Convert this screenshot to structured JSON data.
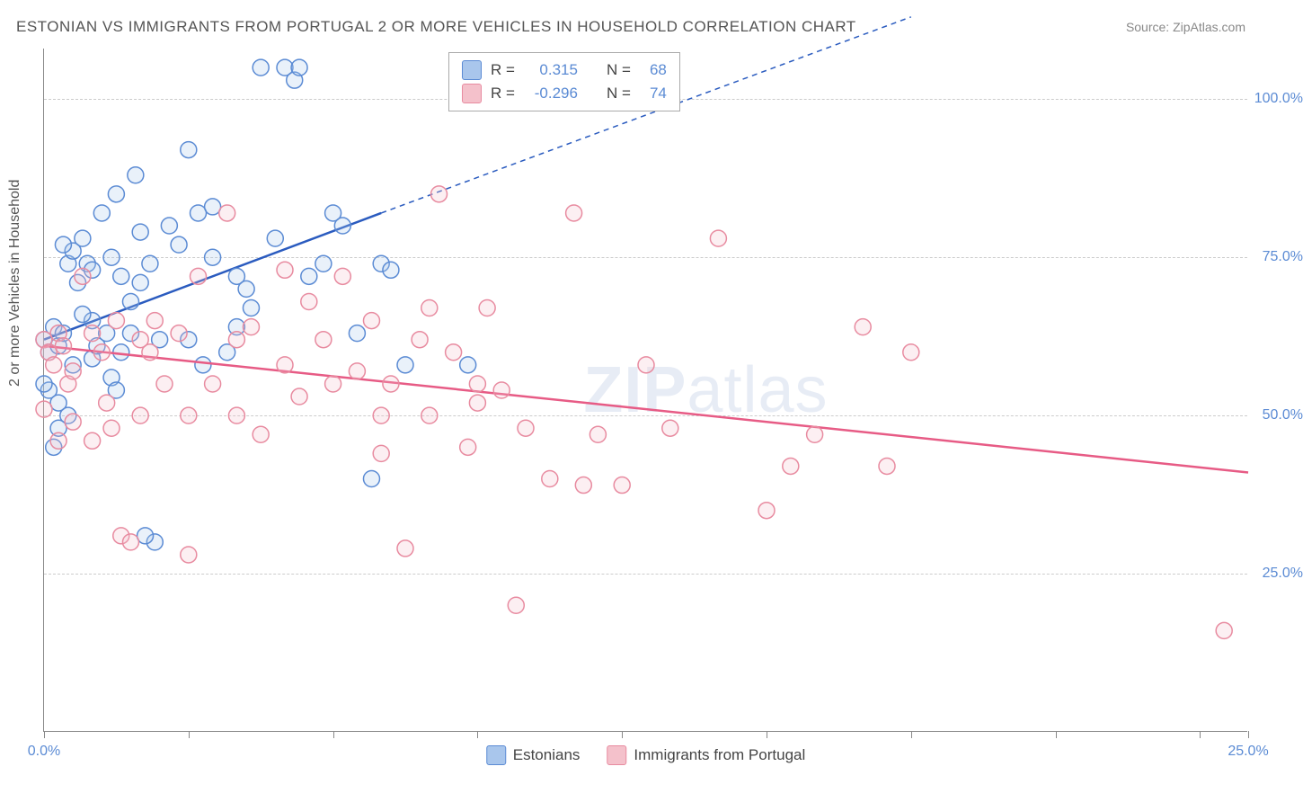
{
  "title": "ESTONIAN VS IMMIGRANTS FROM PORTUGAL 2 OR MORE VEHICLES IN HOUSEHOLD CORRELATION CHART",
  "source": "Source: ZipAtlas.com",
  "y_axis_label": "2 or more Vehicles in Household",
  "watermark": "ZIPatlas",
  "chart": {
    "type": "scatter",
    "xlim": [
      0,
      25
    ],
    "ylim": [
      0,
      108
    ],
    "x_ticks": [
      0,
      3,
      6,
      9,
      12,
      15,
      18,
      21,
      24,
      25
    ],
    "x_tick_labels": {
      "0": "0.0%",
      "25": "25.0%"
    },
    "y_gridlines": [
      25,
      50,
      75,
      100
    ],
    "y_tick_labels": {
      "25": "25.0%",
      "50": "50.0%",
      "75": "75.0%",
      "100": "100.0%"
    },
    "background_color": "#ffffff",
    "grid_color": "#cccccc",
    "axis_color": "#888888",
    "label_color": "#5b8bd4",
    "title_color": "#555555",
    "marker_radius": 9,
    "marker_stroke_width": 1.5,
    "marker_fill_opacity": 0.25,
    "series": [
      {
        "name": "Estonians",
        "color_fill": "#a9c6ec",
        "color_stroke": "#5b8bd4",
        "r_label": "R =",
        "r": "0.315",
        "n_label": "N =",
        "n": "68",
        "trend": {
          "x1": 0,
          "y1": 62,
          "x2": 7,
          "y2": 82,
          "solid_color": "#2a5bbf",
          "dash_x2": 18,
          "dash_y2": 113
        },
        "points": [
          [
            0.0,
            62
          ],
          [
            0.1,
            60
          ],
          [
            0.2,
            64
          ],
          [
            0.3,
            61
          ],
          [
            0.4,
            63
          ],
          [
            0.1,
            54
          ],
          [
            0.3,
            52
          ],
          [
            0.5,
            74
          ],
          [
            0.6,
            76
          ],
          [
            0.4,
            77
          ],
          [
            0.7,
            71
          ],
          [
            0.8,
            78
          ],
          [
            0.9,
            74
          ],
          [
            1.0,
            73
          ],
          [
            1.9,
            88
          ],
          [
            1.5,
            85
          ],
          [
            1.2,
            82
          ],
          [
            1.0,
            59
          ],
          [
            1.1,
            61
          ],
          [
            1.3,
            63
          ],
          [
            1.4,
            56
          ],
          [
            1.5,
            54
          ],
          [
            1.6,
            60
          ],
          [
            1.8,
            63
          ],
          [
            2.0,
            79
          ],
          [
            2.2,
            74
          ],
          [
            2.4,
            62
          ],
          [
            2.6,
            80
          ],
          [
            3.0,
            92
          ],
          [
            3.2,
            82
          ],
          [
            3.5,
            75
          ],
          [
            3.8,
            60
          ],
          [
            4.0,
            64
          ],
          [
            4.3,
            67
          ],
          [
            4.5,
            105
          ],
          [
            4.8,
            78
          ],
          [
            5.0,
            105
          ],
          [
            5.2,
            103
          ],
          [
            5.3,
            105
          ],
          [
            5.5,
            72
          ],
          [
            5.8,
            74
          ],
          [
            6.0,
            82
          ],
          [
            6.2,
            80
          ],
          [
            6.5,
            63
          ],
          [
            6.8,
            40
          ],
          [
            7.0,
            74
          ],
          [
            7.2,
            73
          ],
          [
            7.5,
            58
          ],
          [
            3.0,
            62
          ],
          [
            3.3,
            58
          ],
          [
            1.8,
            68
          ],
          [
            2.0,
            71
          ],
          [
            2.3,
            30
          ],
          [
            2.1,
            31
          ],
          [
            1.0,
            65
          ],
          [
            0.8,
            66
          ],
          [
            0.6,
            58
          ],
          [
            0.5,
            50
          ],
          [
            0.3,
            48
          ],
          [
            0.2,
            45
          ],
          [
            4.0,
            72
          ],
          [
            4.2,
            70
          ],
          [
            2.8,
            77
          ],
          [
            3.5,
            83
          ],
          [
            1.4,
            75
          ],
          [
            1.6,
            72
          ],
          [
            8.8,
            58
          ],
          [
            0.0,
            55
          ]
        ]
      },
      {
        "name": "Immigrants from Portugal",
        "color_fill": "#f4c1cb",
        "color_stroke": "#e88ba0",
        "r_label": "R =",
        "r": "-0.296",
        "n_label": "N =",
        "n": "74",
        "trend": {
          "x1": 0,
          "y1": 61,
          "x2": 25,
          "y2": 41,
          "solid_color": "#e75b85"
        },
        "points": [
          [
            0.0,
            62
          ],
          [
            0.1,
            60
          ],
          [
            0.2,
            58
          ],
          [
            0.3,
            63
          ],
          [
            0.4,
            61
          ],
          [
            0.5,
            55
          ],
          [
            0.6,
            57
          ],
          [
            0.8,
            72
          ],
          [
            1.0,
            63
          ],
          [
            1.2,
            60
          ],
          [
            1.4,
            48
          ],
          [
            1.6,
            31
          ],
          [
            1.8,
            30
          ],
          [
            2.0,
            62
          ],
          [
            2.2,
            60
          ],
          [
            2.5,
            55
          ],
          [
            2.8,
            63
          ],
          [
            3.0,
            28
          ],
          [
            3.2,
            72
          ],
          [
            3.5,
            55
          ],
          [
            3.8,
            82
          ],
          [
            4.0,
            62
          ],
          [
            4.3,
            64
          ],
          [
            4.5,
            47
          ],
          [
            5.0,
            73
          ],
          [
            5.3,
            53
          ],
          [
            5.5,
            68
          ],
          [
            5.8,
            62
          ],
          [
            6.0,
            55
          ],
          [
            6.2,
            72
          ],
          [
            6.5,
            57
          ],
          [
            6.8,
            65
          ],
          [
            7.0,
            44
          ],
          [
            7.2,
            55
          ],
          [
            7.5,
            29
          ],
          [
            7.8,
            62
          ],
          [
            8.0,
            67
          ],
          [
            8.2,
            85
          ],
          [
            8.5,
            60
          ],
          [
            8.8,
            45
          ],
          [
            9.0,
            55
          ],
          [
            9.2,
            67
          ],
          [
            9.5,
            54
          ],
          [
            9.8,
            20
          ],
          [
            10.0,
            48
          ],
          [
            10.5,
            40
          ],
          [
            11.0,
            82
          ],
          [
            11.2,
            39
          ],
          [
            11.5,
            47
          ],
          [
            12.0,
            39
          ],
          [
            12.5,
            58
          ],
          [
            13.0,
            48
          ],
          [
            14.0,
            78
          ],
          [
            15.0,
            35
          ],
          [
            15.5,
            42
          ],
          [
            16.0,
            47
          ],
          [
            17.0,
            64
          ],
          [
            17.5,
            42
          ],
          [
            18.0,
            60
          ],
          [
            24.5,
            16
          ],
          [
            0.0,
            51
          ],
          [
            0.3,
            46
          ],
          [
            0.6,
            49
          ],
          [
            1.0,
            46
          ],
          [
            1.3,
            52
          ],
          [
            1.5,
            65
          ],
          [
            2.0,
            50
          ],
          [
            2.3,
            65
          ],
          [
            3.0,
            50
          ],
          [
            4.0,
            50
          ],
          [
            5.0,
            58
          ],
          [
            7.0,
            50
          ],
          [
            8.0,
            50
          ],
          [
            9.0,
            52
          ]
        ]
      }
    ]
  },
  "legend": {
    "series1": "Estonians",
    "series2": "Immigrants from Portugal"
  }
}
